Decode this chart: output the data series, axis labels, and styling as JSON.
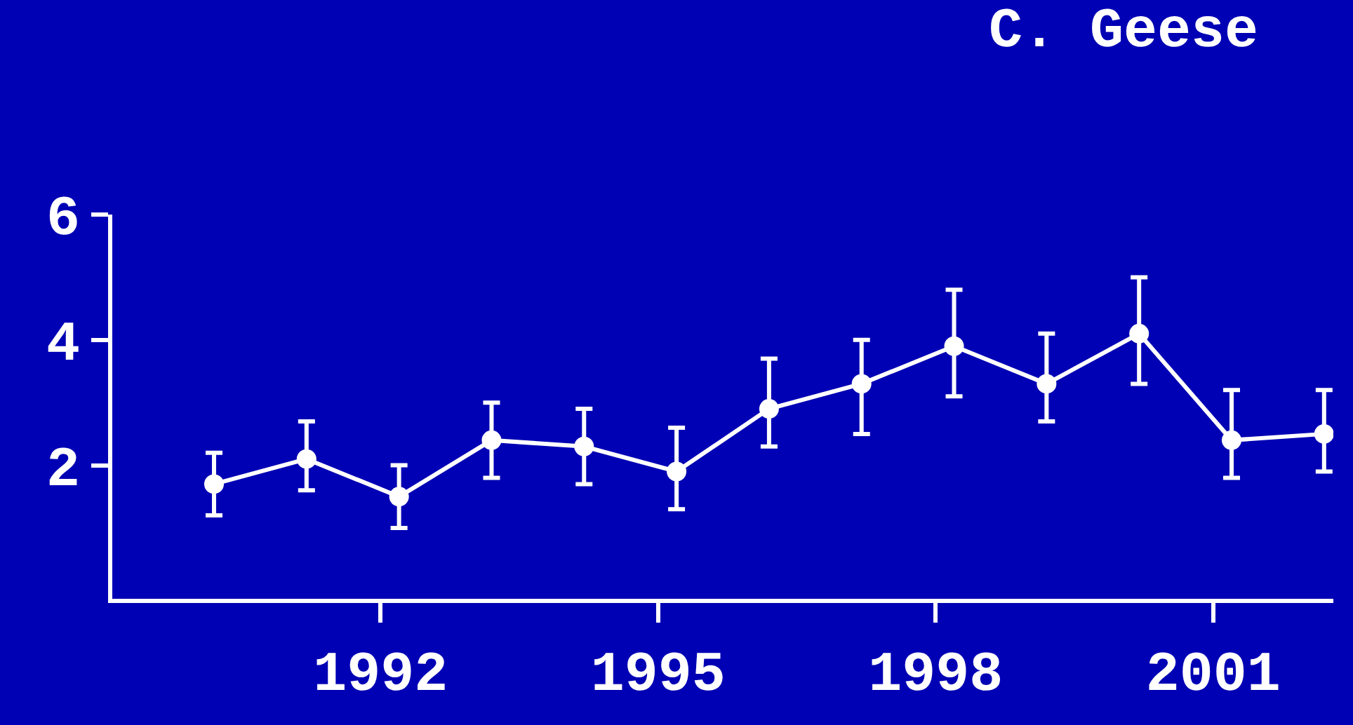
{
  "chart_data": {
    "type": "line",
    "title": "C. Geese",
    "x": [
      1990.2,
      1991.2,
      1992.2,
      1993.2,
      1994.2,
      1995.2,
      1996.2,
      1997.2,
      1998.2,
      1999.2,
      2000.2,
      2001.2,
      2002.2
    ],
    "series": [
      {
        "color": "#ffffff",
        "values": [
          1.7,
          2.1,
          1.5,
          2.4,
          2.3,
          1.9,
          2.9,
          3.3,
          3.9,
          3.3,
          4.1,
          2.4,
          2.5
        ],
        "errors": [
          [
            1.2,
            2.2
          ],
          [
            1.6,
            2.7
          ],
          [
            1.0,
            2.0
          ],
          [
            1.8,
            3.0
          ],
          [
            1.7,
            2.9
          ],
          [
            1.3,
            2.6
          ],
          [
            2.3,
            3.7
          ],
          [
            2.5,
            4.0
          ],
          [
            3.1,
            4.8
          ],
          [
            2.7,
            4.1
          ],
          [
            3.3,
            5.0
          ],
          [
            1.8,
            3.2
          ],
          [
            1.9,
            3.2
          ]
        ]
      }
    ],
    "xlim": [
      1989.1,
      2002.3
    ],
    "xticks": [
      1992,
      1995,
      1998,
      2001
    ],
    "ylim": [
      -0.13,
      6
    ],
    "yticks": [
      2,
      4,
      6
    ],
    "grid": false,
    "legend": false,
    "marker": "circle",
    "line_style": "solid"
  }
}
